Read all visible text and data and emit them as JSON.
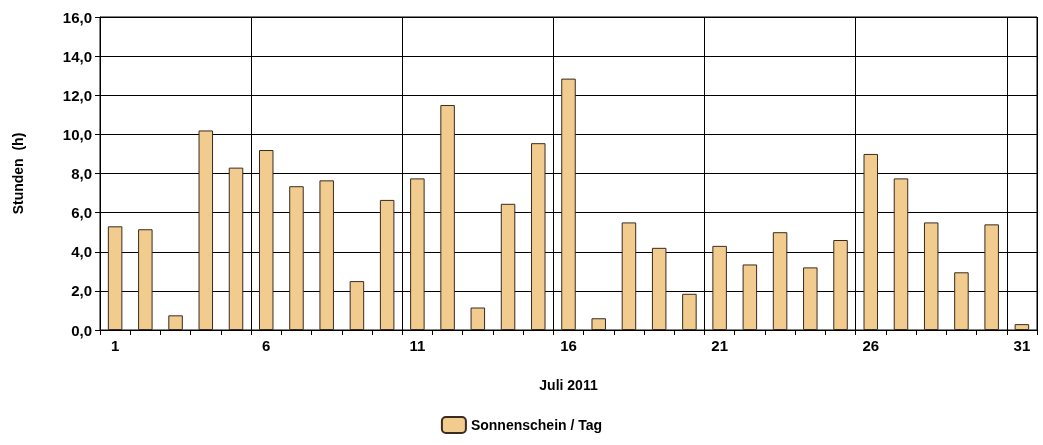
{
  "chart_data": {
    "type": "bar",
    "xlabel": "Juli 2011",
    "ylabel": "Stunden  (h)",
    "categories": [
      "1",
      null,
      null,
      null,
      null,
      "6",
      null,
      null,
      null,
      null,
      "11",
      null,
      null,
      null,
      null,
      "16",
      null,
      null,
      null,
      null,
      "21",
      null,
      null,
      null,
      null,
      "26",
      null,
      null,
      null,
      null,
      "31"
    ],
    "series": [
      {
        "name": "Sonnenschein / Tag",
        "color": "#f2cc8f",
        "values": [
          5.3,
          5.15,
          0.75,
          10.2,
          8.3,
          9.2,
          7.35,
          7.65,
          2.5,
          6.65,
          7.75,
          11.5,
          1.15,
          6.45,
          9.55,
          12.85,
          0.6,
          5.5,
          4.2,
          1.85,
          4.3,
          3.35,
          5.0,
          3.2,
          4.6,
          9.0,
          7.75,
          5.5,
          2.95,
          5.4,
          0.3
        ]
      }
    ],
    "ylim": [
      0,
      16
    ],
    "yticks": [
      {
        "value": 0,
        "label": "0,0"
      },
      {
        "value": 2,
        "label": "2,0"
      },
      {
        "value": 4,
        "label": "4,0"
      },
      {
        "value": 6,
        "label": "6,0"
      },
      {
        "value": 8,
        "label": "8,0"
      },
      {
        "value": 10,
        "label": "10,0"
      },
      {
        "value": 12,
        "label": "12,0"
      },
      {
        "value": 14,
        "label": "14,0"
      },
      {
        "value": 16,
        "label": "16,0"
      }
    ],
    "grid": true,
    "legend": "bottom"
  }
}
